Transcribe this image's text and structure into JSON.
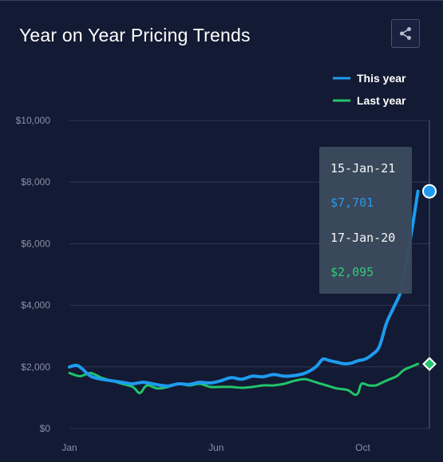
{
  "header": {
    "title": "Year on Year Pricing Trends",
    "share_icon": "share-icon"
  },
  "colors": {
    "background": "#131a33",
    "this_year": "#1e9bf0",
    "last_year": "#22c46a"
  },
  "tooltip": {
    "date_this_year": "15-Jan-21",
    "value_this_year": "$7,701",
    "date_last_year": "17-Jan-20",
    "value_last_year": "$2,095"
  },
  "chart_data": {
    "type": "line",
    "title": "Year on Year Pricing Trends",
    "xlabel": "",
    "ylabel": "",
    "ylim": [
      0,
      10000
    ],
    "xlim": [
      0,
      1
    ],
    "y_ticks": [
      0,
      2000,
      4000,
      6000,
      8000,
      10000
    ],
    "y_tick_labels": [
      "$0",
      "$2,000",
      "$4,000",
      "$6,000",
      "$8,000",
      "$10,000"
    ],
    "x_ticks": [
      0,
      0.4167,
      0.8333
    ],
    "x_tick_labels": [
      "Jan",
      "Jun",
      "Oct"
    ],
    "grid": true,
    "legend": "top-right",
    "series": [
      {
        "name": "This year",
        "x": [
          0,
          0.02,
          0.035,
          0.06,
          0.09,
          0.12,
          0.15,
          0.18,
          0.21,
          0.25,
          0.28,
          0.31,
          0.34,
          0.37,
          0.4,
          0.43,
          0.46,
          0.49,
          0.52,
          0.55,
          0.58,
          0.61,
          0.64,
          0.67,
          0.7,
          0.72,
          0.74,
          0.76,
          0.78,
          0.8,
          0.82,
          0.84,
          0.86,
          0.88,
          0.9,
          0.92,
          0.94,
          0.95,
          0.96,
          0.975,
          0.99
        ],
        "values": [
          2000,
          2050,
          1950,
          1700,
          1600,
          1550,
          1500,
          1450,
          1500,
          1420,
          1380,
          1450,
          1430,
          1500,
          1480,
          1550,
          1650,
          1600,
          1700,
          1680,
          1750,
          1700,
          1720,
          1800,
          2000,
          2250,
          2200,
          2150,
          2100,
          2120,
          2200,
          2250,
          2400,
          2650,
          3400,
          3900,
          4400,
          4900,
          5600,
          6600,
          7701
        ]
      },
      {
        "name": "Last year",
        "x": [
          0,
          0.03,
          0.06,
          0.09,
          0.12,
          0.15,
          0.18,
          0.2,
          0.22,
          0.25,
          0.28,
          0.31,
          0.34,
          0.37,
          0.4,
          0.43,
          0.46,
          0.49,
          0.52,
          0.55,
          0.58,
          0.61,
          0.64,
          0.67,
          0.7,
          0.73,
          0.76,
          0.79,
          0.81,
          0.82,
          0.83,
          0.85,
          0.87,
          0.89,
          0.91,
          0.93,
          0.95,
          0.97,
          0.99
        ],
        "values": [
          1800,
          1700,
          1800,
          1650,
          1550,
          1450,
          1350,
          1150,
          1400,
          1300,
          1350,
          1450,
          1400,
          1450,
          1350,
          1350,
          1350,
          1320,
          1350,
          1400,
          1400,
          1450,
          1550,
          1600,
          1500,
          1400,
          1300,
          1250,
          1100,
          1150,
          1450,
          1400,
          1400,
          1500,
          1600,
          1700,
          1900,
          2000,
          2095
        ]
      }
    ]
  }
}
